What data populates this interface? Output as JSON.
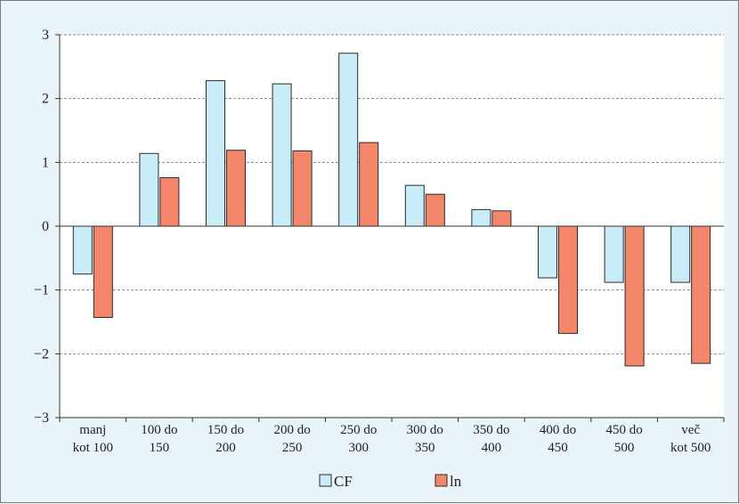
{
  "chart_data": {
    "type": "bar",
    "categories": [
      [
        "manj",
        "kot 100"
      ],
      [
        "100 do",
        "150"
      ],
      [
        "150 do",
        "200"
      ],
      [
        "200 do",
        "250"
      ],
      [
        "250 do",
        "300"
      ],
      [
        "300 do",
        "350"
      ],
      [
        "350 do",
        "400"
      ],
      [
        "400 do",
        "450"
      ],
      [
        "450 do",
        "500"
      ],
      [
        "več",
        "kot 500"
      ]
    ],
    "series": [
      {
        "name": "CF",
        "color": "#c8ecf8",
        "values": [
          -0.75,
          1.14,
          2.28,
          2.23,
          2.71,
          0.64,
          0.26,
          -0.81,
          -0.88,
          -0.88
        ]
      },
      {
        "name": "ln",
        "color": "#f4866c",
        "values": [
          -1.43,
          0.76,
          1.19,
          1.18,
          1.31,
          0.5,
          0.24,
          -1.68,
          -2.19,
          -2.15
        ]
      }
    ],
    "ylim": [
      -3,
      3
    ],
    "yticks": [
      3,
      2,
      1,
      0,
      -1,
      -2,
      -3
    ],
    "ytick_labels": [
      "3",
      "2",
      "1",
      "0",
      "−1",
      "−2",
      "−3"
    ],
    "grid": true,
    "legend_position": "bottom-center",
    "title": "",
    "xlabel": "",
    "ylabel": ""
  }
}
